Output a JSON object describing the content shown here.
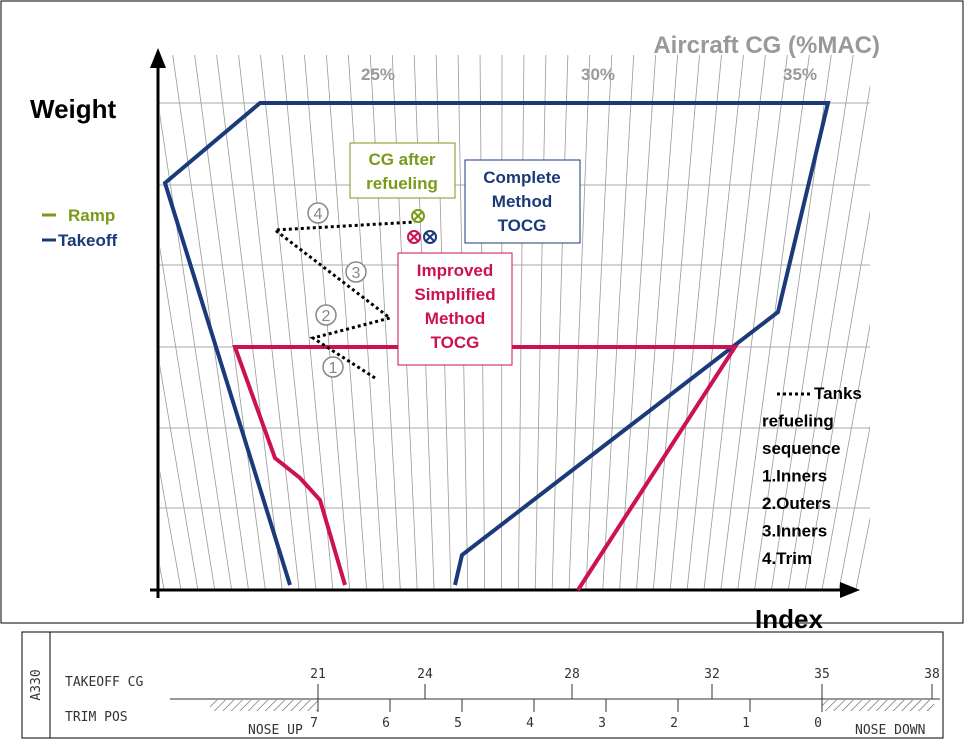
{
  "header": {
    "cg_title": "Aircraft CG (%MAC)",
    "y_label": "Weight",
    "x_label": "Index"
  },
  "cg_labels": [
    "25%",
    "30%",
    "35%"
  ],
  "weight_labels": {
    "ramp": "Ramp",
    "takeoff": "Takeoff"
  },
  "boxes": {
    "cg_after": [
      "CG after",
      "refueling"
    ],
    "complete": [
      "Complete",
      "Method",
      "TOCG"
    ],
    "improved": [
      "Improved",
      "Simplified",
      "Method",
      "TOCG"
    ]
  },
  "steps": [
    "1",
    "2",
    "3",
    "4"
  ],
  "legend": [
    "Tanks",
    "refueling",
    "sequence",
    "1.Inners",
    "2.Outers",
    "3.Inners",
    "4.Trim"
  ],
  "trim_scale": {
    "aircraft": "A330",
    "row1": "TAKEOFF CG",
    "row2": "TRIM POS",
    "cg_ticks": [
      "21",
      "24",
      "28",
      "32",
      "35",
      "38"
    ],
    "trim_ticks": [
      "7",
      "6",
      "5",
      "4",
      "3",
      "2",
      "1",
      "0"
    ],
    "nose_up": "NOSE UP",
    "nose_down": "NOSE DOWN"
  }
}
